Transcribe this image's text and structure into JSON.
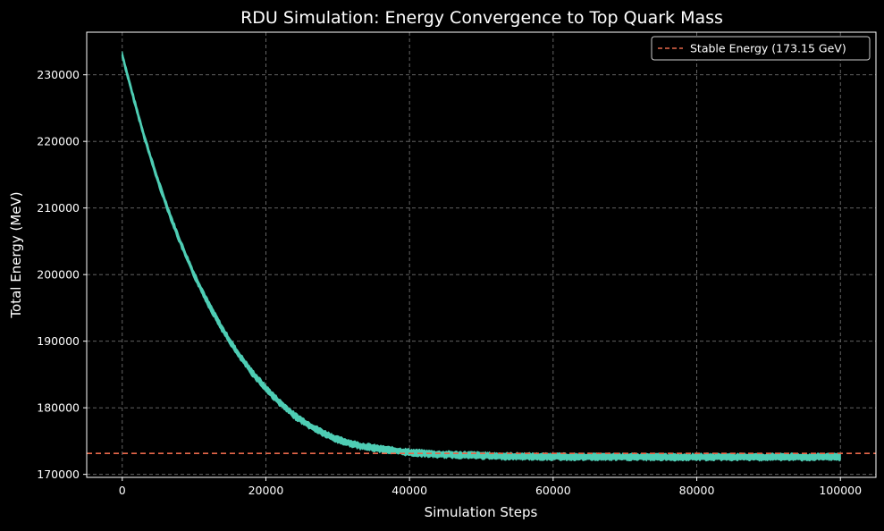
{
  "chart_data": {
    "type": "line",
    "title": "RDU Simulation: Energy Convergence to Top Quark Mass",
    "xlabel": "Simulation Steps",
    "ylabel": "Total Energy (MeV)",
    "xlim": [
      -4950,
      104950
    ],
    "ylim": [
      169550,
      236400
    ],
    "x_ticks": [
      0,
      20000,
      40000,
      60000,
      80000,
      100000
    ],
    "x_tick_labels": [
      "0",
      "20000",
      "40000",
      "60000",
      "80000",
      "100000"
    ],
    "y_ticks": [
      170000,
      180000,
      190000,
      200000,
      210000,
      220000,
      230000
    ],
    "y_tick_labels": [
      "170000",
      "180000",
      "190000",
      "200000",
      "210000",
      "220000",
      "230000"
    ],
    "grid": true,
    "legend_position": "top-right",
    "series": [
      {
        "name": "",
        "color": "#4ecdb4",
        "x": [
          0,
          1000,
          2000,
          3000,
          4000,
          5000,
          6000,
          7000,
          8000,
          9000,
          10000,
          12000,
          14000,
          16000,
          18000,
          20000,
          22000,
          24000,
          26000,
          28000,
          30000,
          33000,
          36000,
          40000,
          44000,
          48000,
          52000,
          56000,
          60000,
          65000,
          70000,
          75000,
          80000,
          85000,
          90000,
          95000,
          100000
        ],
        "y": [
          233000,
          228800,
          224800,
          221000,
          217400,
          214000,
          210900,
          207900,
          205100,
          202500,
          200000,
          195600,
          191700,
          188300,
          185400,
          182900,
          180700,
          178800,
          177400,
          176200,
          175200,
          174300,
          173800,
          173300,
          173000,
          172900,
          172750,
          172700,
          172650,
          172620,
          172610,
          172600,
          172600,
          172600,
          172600,
          172600,
          172600
        ],
        "noise_band": 600
      },
      {
        "name": "Stable Energy (173.15 GeV)",
        "color": "#e8684a",
        "style": "dashed",
        "y_constant": 173150
      }
    ]
  }
}
